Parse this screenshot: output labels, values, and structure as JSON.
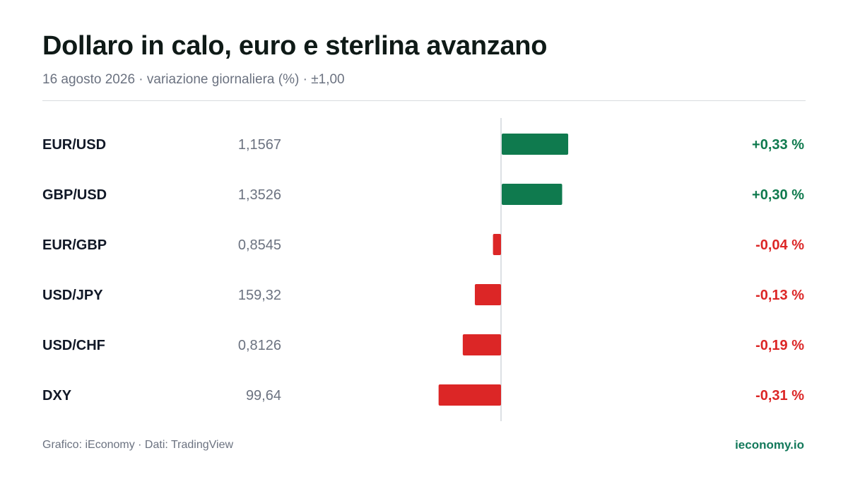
{
  "header": {
    "title": "Dollaro in calo, euro e sterlina avanzano",
    "subtitle": "16 agosto 2026 · variazione giornaliera (%) · ±1,00"
  },
  "footer": {
    "source": "Grafico: iEconomy · Dati: TradingView",
    "site": "ieconomy.io"
  },
  "colors": {
    "positive": "#0f7a4e",
    "negative": "#dc2626",
    "label": "#111827",
    "price": "#6b7280",
    "axis": "#d1d5db"
  },
  "chart_data": {
    "type": "bar",
    "orientation": "horizontal",
    "xlim": [
      -1.0,
      1.0
    ],
    "unit": "%",
    "categories": [
      "EUR/USD",
      "GBP/USD",
      "EUR/GBP",
      "USD/JPY",
      "USD/CHF",
      "DXY"
    ],
    "prices": [
      "1,1567",
      "1,3526",
      "0,8545",
      "159,32",
      "0,8126",
      "99,64"
    ],
    "values": [
      0.33,
      0.3,
      -0.04,
      -0.13,
      -0.19,
      -0.31
    ],
    "value_labels": [
      "+0,33 %",
      "+0,30 %",
      "-0,04 %",
      "-0,13 %",
      "-0,19 %",
      "-0,31 %"
    ]
  }
}
